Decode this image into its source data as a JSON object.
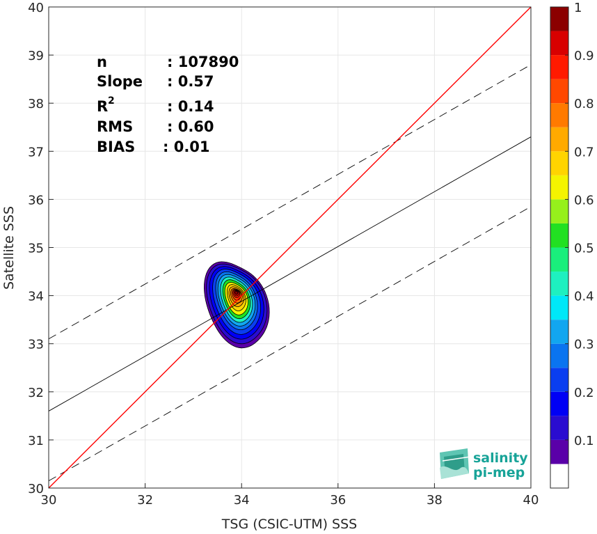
{
  "chart_data": {
    "type": "scatter",
    "subtype": "density-contour",
    "xlabel": "TSG (CSIC-UTM) SSS",
    "ylabel": "Satellite SSS",
    "xlim": [
      30,
      40
    ],
    "ylim": [
      30,
      40
    ],
    "x_ticks": [
      "30",
      "32",
      "34",
      "36",
      "38",
      "40"
    ],
    "y_ticks": [
      "30",
      "31",
      "32",
      "33",
      "34",
      "35",
      "36",
      "37",
      "38",
      "39",
      "40"
    ],
    "grid": true,
    "stats": [
      {
        "label": "n",
        "value": ": 107890"
      },
      {
        "label": "Slope",
        "value": ": 0.57"
      },
      {
        "label": "R",
        "sup": "2",
        "value": ": 0.14"
      },
      {
        "label": "RMS",
        "value": ": 0.60"
      },
      {
        "label": "BIAS",
        "value": ": 0.01"
      }
    ],
    "lines": {
      "identity": {
        "x": [
          30,
          40
        ],
        "y": [
          30,
          40
        ],
        "color": "#ff0000"
      },
      "regression": {
        "x": [
          30,
          40
        ],
        "y": [
          31.6,
          37.3
        ],
        "color": "#000000"
      },
      "upper_bound": {
        "x": [
          30,
          40
        ],
        "y": [
          33.1,
          38.8
        ],
        "color": "#000000",
        "style": "dashed"
      },
      "lower_bound": {
        "x": [
          30,
          40
        ],
        "y": [
          30.15,
          35.85
        ],
        "color": "#000000",
        "style": "dashed"
      }
    },
    "density_center": {
      "x": 33.95,
      "y": 34.0
    },
    "colorbar": {
      "range": [
        0,
        1
      ],
      "tick_labels": [
        "0.1",
        "0.2",
        "0.3",
        "0.4",
        "0.5",
        "0.6",
        "0.7",
        "0.8",
        "0.9",
        "1"
      ],
      "tick_values": [
        0.1,
        0.2,
        0.3,
        0.4,
        0.5,
        0.6,
        0.7,
        0.8,
        0.9,
        1.0
      ],
      "levels": [
        {
          "from": 0.0,
          "to": 0.05,
          "color": "#ffffff"
        },
        {
          "from": 0.05,
          "to": 0.1,
          "color": "#5a00a8"
        },
        {
          "from": 0.1,
          "to": 0.15,
          "color": "#2a0cd0"
        },
        {
          "from": 0.15,
          "to": 0.2,
          "color": "#0000f5"
        },
        {
          "from": 0.2,
          "to": 0.25,
          "color": "#0a3ef0"
        },
        {
          "from": 0.25,
          "to": 0.3,
          "color": "#0a74f0"
        },
        {
          "from": 0.3,
          "to": 0.35,
          "color": "#12a6f0"
        },
        {
          "from": 0.35,
          "to": 0.4,
          "color": "#00e8f8"
        },
        {
          "from": 0.4,
          "to": 0.45,
          "color": "#1ef0c0"
        },
        {
          "from": 0.45,
          "to": 0.5,
          "color": "#1aef7c"
        },
        {
          "from": 0.5,
          "to": 0.55,
          "color": "#22e022"
        },
        {
          "from": 0.55,
          "to": 0.6,
          "color": "#96f01c"
        },
        {
          "from": 0.6,
          "to": 0.65,
          "color": "#f4f400"
        },
        {
          "from": 0.65,
          "to": 0.7,
          "color": "#ffd400"
        },
        {
          "from": 0.7,
          "to": 0.75,
          "color": "#ffaa00"
        },
        {
          "from": 0.75,
          "to": 0.8,
          "color": "#ff7a00"
        },
        {
          "from": 0.8,
          "to": 0.85,
          "color": "#ff4800"
        },
        {
          "from": 0.85,
          "to": 0.9,
          "color": "#ff1a00"
        },
        {
          "from": 0.9,
          "to": 0.95,
          "color": "#d80000"
        },
        {
          "from": 0.95,
          "to": 1.0,
          "color": "#8b0000"
        }
      ]
    }
  },
  "logo": {
    "line1": "salinity",
    "line2": "pi-mep",
    "color": "#17a398"
  }
}
